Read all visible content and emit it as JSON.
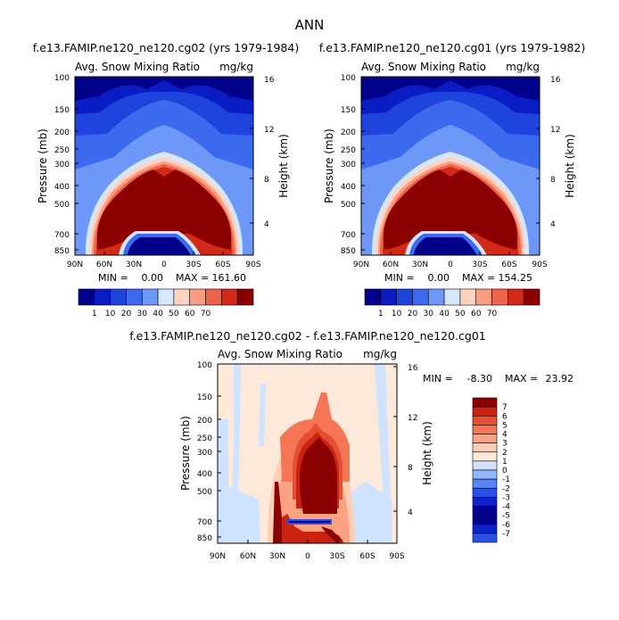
{
  "figure_title": "ANN",
  "colors": {
    "scale_11": [
      "#00008b",
      "#0a1cc4",
      "#1f44dd",
      "#3c6aee",
      "#6d98f7",
      "#d6e8ff",
      "#ffd2bf",
      "#fa9d80",
      "#eb6449",
      "#d32a17",
      "#8b0000"
    ],
    "scale_diff": [
      "#00008b",
      "#0d22c8",
      "#2b51e4",
      "#5a83f3",
      "#93b6fb",
      "#cfe2ff",
      "#fde9d9",
      "#ffcdb3",
      "#fca283",
      "#f47654",
      "#e44e31",
      "#cc2210",
      "#8b0000"
    ]
  },
  "chart_data": [
    {
      "type": "contour",
      "title": "f.e13.FAMIP.ne120_ne120.cg02 (yrs 1979-1984)",
      "left_label": "Avg. Snow Mixing Ratio",
      "right_label": "mg/kg",
      "ylabel": "Pressure (mb)",
      "y2label": "Height (km)",
      "x_ticks": [
        "90N",
        "60N",
        "30N",
        "0",
        "30S",
        "60S",
        "90S"
      ],
      "y_ticks": [
        "100",
        "150",
        "200",
        "250",
        "300",
        "400",
        "500",
        "700",
        "850"
      ],
      "y2_ticks": [
        "16",
        "12",
        "8",
        "4"
      ],
      "min_label": "MIN =",
      "min_value": "0.00",
      "max_label": "MAX =",
      "max_value": "161.60",
      "colorbar_labels": [
        "1",
        "10",
        "20",
        "30",
        "40",
        "50",
        "60",
        "70"
      ]
    },
    {
      "type": "contour",
      "title": "f.e13.FAMIP.ne120_ne120.cg01 (yrs 1979-1982)",
      "left_label": "Avg. Snow Mixing Ratio",
      "right_label": "mg/kg",
      "ylabel": "Pressure (mb)",
      "y2label": "Height (km)",
      "x_ticks": [
        "90N",
        "60N",
        "30N",
        "0",
        "30S",
        "60S",
        "90S"
      ],
      "y_ticks": [
        "100",
        "150",
        "200",
        "250",
        "300",
        "400",
        "500",
        "700",
        "850"
      ],
      "y2_ticks": [
        "16",
        "12",
        "8",
        "4"
      ],
      "min_label": "MIN =",
      "min_value": "0.00",
      "max_label": "MAX =",
      "max_value": "154.25",
      "colorbar_labels": [
        "1",
        "10",
        "20",
        "30",
        "40",
        "50",
        "60",
        "70"
      ]
    },
    {
      "type": "contour",
      "title": "f.e13.FAMIP.ne120_ne120.cg02 - f.e13.FAMIP.ne120_ne120.cg01",
      "left_label": "Avg. Snow Mixing Ratio",
      "right_label": "mg/kg",
      "ylabel": "Pressure (mb)",
      "y2label": "Height (km)",
      "x_ticks": [
        "90N",
        "60N",
        "30N",
        "0",
        "30S",
        "60S",
        "90S"
      ],
      "y_ticks": [
        "100",
        "150",
        "200",
        "250",
        "300",
        "400",
        "500",
        "700",
        "850"
      ],
      "y2_ticks": [
        "16",
        "12",
        "8",
        "4"
      ],
      "min_label": "MIN =",
      "min_value": "-8.30",
      "max_label": "MAX =",
      "max_value": "23.92",
      "colorbar_labels": [
        "7",
        "6",
        "5",
        "4",
        "3",
        "2",
        "1",
        "0",
        "-1",
        "-2",
        "-3",
        "-4",
        "-5",
        "-6",
        "-7"
      ]
    }
  ]
}
